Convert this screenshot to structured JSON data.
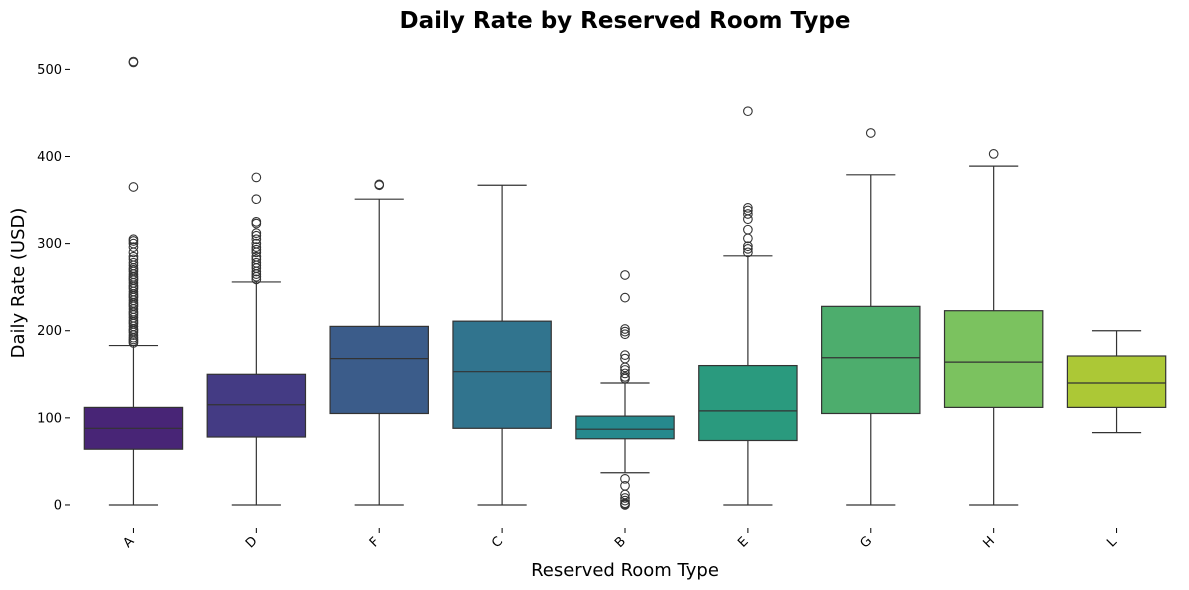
{
  "chart_data": {
    "type": "box",
    "title": "Daily Rate by Reserved Room Type",
    "xlabel": "Reserved Room Type",
    "ylabel": "Daily Rate (USD)",
    "ylim": [
      -23,
      528
    ],
    "yticks": [
      0,
      100,
      200,
      300,
      400,
      500
    ],
    "ytick_labels": [
      "0",
      "100",
      "200",
      "300",
      "400",
      "500"
    ],
    "grid": false,
    "categories": [
      "A",
      "D",
      "F",
      "C",
      "B",
      "E",
      "G",
      "H",
      "L"
    ],
    "boxes": [
      {
        "category": "A",
        "whisker_low": 0,
        "q1": 64,
        "median": 88,
        "q3": 112,
        "whisker_high": 183,
        "color": "#482576",
        "outliers": [
          509,
          508,
          365,
          305,
          303,
          300,
          296,
          290,
          285,
          282,
          278,
          275,
          272,
          270,
          268,
          265,
          262,
          260,
          258,
          255,
          252,
          250,
          248,
          245,
          242,
          240,
          238,
          235,
          232,
          230,
          228,
          225,
          222,
          220,
          218,
          215,
          212,
          210,
          208,
          205,
          202,
          200,
          198,
          195,
          192,
          190,
          188,
          186
        ]
      },
      {
        "category": "D",
        "whisker_low": 0,
        "q1": 78,
        "median": 115,
        "q3": 150,
        "whisker_high": 256,
        "color": "#443b84",
        "outliers": [
          376,
          351,
          325,
          323,
          312,
          309,
          305,
          300,
          296,
          293,
          290,
          285,
          282,
          278,
          275,
          272,
          268,
          265,
          262,
          259
        ]
      },
      {
        "category": "F",
        "whisker_low": 0,
        "q1": 105,
        "median": 168,
        "q3": 205,
        "whisker_high": 351,
        "color": "#3b5c8a",
        "outliers": [
          368,
          367
        ]
      },
      {
        "category": "C",
        "whisker_low": 0,
        "q1": 88,
        "median": 153,
        "q3": 211,
        "whisker_high": 367,
        "color": "#31748e",
        "outliers": []
      },
      {
        "category": "B",
        "whisker_low": 37,
        "q1": 76,
        "median": 87,
        "q3": 102,
        "whisker_high": 140,
        "color": "#26898d",
        "outliers": [
          264,
          238,
          202,
          199,
          196,
          172,
          168,
          158,
          155,
          151,
          147,
          145,
          30,
          22,
          12,
          8,
          5,
          2,
          1,
          0
        ]
      },
      {
        "category": "E",
        "whisker_low": 0,
        "q1": 74,
        "median": 108,
        "q3": 160,
        "whisker_high": 286,
        "color": "#2a9a7e",
        "outliers": [
          452,
          341,
          338,
          334,
          328,
          316,
          306,
          297,
          294,
          290
        ]
      },
      {
        "category": "G",
        "whisker_low": 0,
        "q1": 105,
        "median": 169,
        "q3": 228,
        "whisker_high": 379,
        "color": "#4dad6d",
        "outliers": [
          427
        ]
      },
      {
        "category": "H",
        "whisker_low": 0,
        "q1": 112,
        "median": 164,
        "q3": 223,
        "whisker_high": 389,
        "color": "#7bc25f",
        "outliers": [
          403
        ]
      },
      {
        "category": "L",
        "whisker_low": 83,
        "q1": 112,
        "median": 140,
        "q3": 171,
        "whisker_high": 200,
        "color": "#acc836",
        "outliers": []
      }
    ]
  }
}
